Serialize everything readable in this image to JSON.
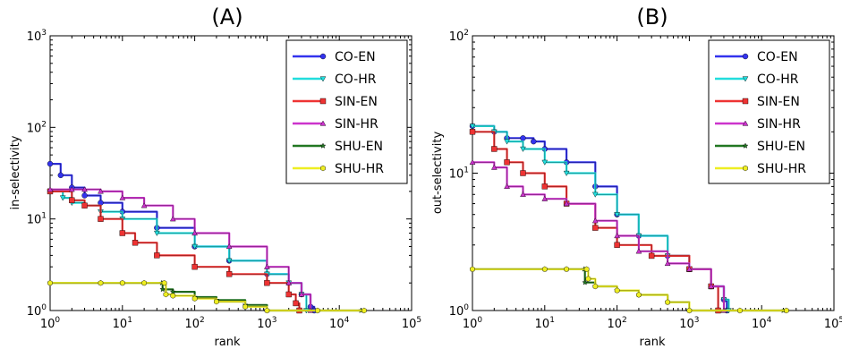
{
  "chart_data": [
    {
      "type": "line",
      "title": "(A)",
      "xlabel": "rank",
      "ylabel": "in-selectivity",
      "xscale": "log",
      "yscale": "log",
      "xlim": [
        1,
        100000
      ],
      "ylim": [
        1,
        1000
      ],
      "xticks": [
        "10^0",
        "10^1",
        "10^2",
        "10^3",
        "10^4",
        "10^5"
      ],
      "yticks": [
        "10^0",
        "10^1",
        "10^2",
        "10^3"
      ],
      "grid": false,
      "legend_position": "top-right",
      "series": [
        {
          "name": "CO-EN",
          "color": "#3333ee",
          "marker": "circle",
          "x": [
            1,
            1.4,
            2,
            3,
            5,
            10,
            30,
            100,
            300,
            1000,
            2000,
            3000,
            4000,
            4500
          ],
          "y": [
            40,
            30,
            22,
            18,
            15,
            12,
            8,
            5,
            3.5,
            2.5,
            2,
            1.5,
            1.1,
            1
          ]
        },
        {
          "name": "CO-HR",
          "color": "#22dddd",
          "marker": "triangle-down",
          "x": [
            1,
            1.5,
            2,
            3,
            5,
            10,
            30,
            100,
            300,
            1000,
            2000,
            3000,
            3500
          ],
          "y": [
            20,
            17,
            15,
            14,
            12,
            10,
            7,
            5,
            3.5,
            2.5,
            2,
            1.5,
            1
          ]
        },
        {
          "name": "SIN-EN",
          "color": "#ee3333",
          "marker": "square",
          "x": [
            1,
            2,
            3,
            5,
            10,
            15,
            30,
            100,
            300,
            1000,
            2000,
            2500,
            2800
          ],
          "y": [
            20,
            16,
            14,
            10,
            7,
            5.5,
            4,
            3,
            2.5,
            2,
            1.5,
            1.2,
            1
          ]
        },
        {
          "name": "SIN-HR",
          "color": "#cc33cc",
          "marker": "triangle-up",
          "x": [
            1,
            2,
            3,
            5,
            10,
            20,
            50,
            100,
            300,
            1000,
            2000,
            3000,
            4000
          ],
          "y": [
            21,
            21,
            21,
            20,
            17,
            14,
            10,
            7,
            5,
            3,
            2,
            1.5,
            1
          ]
        },
        {
          "name": "SHU-EN",
          "color": "#227722",
          "marker": "star",
          "x": [
            1,
            5,
            10,
            20,
            35,
            36,
            50,
            100,
            200,
            500,
            1000,
            5000,
            20000
          ],
          "y": [
            2,
            2,
            2,
            2,
            2,
            1.7,
            1.6,
            1.4,
            1.3,
            1.15,
            1,
            1,
            1
          ]
        },
        {
          "name": "SHU-HR",
          "color": "#eeee22",
          "marker": "hexagon",
          "x": [
            1,
            5,
            10,
            20,
            38,
            40,
            50,
            100,
            200,
            500,
            1000,
            5000,
            22000
          ],
          "y": [
            2,
            2,
            2,
            2,
            2,
            1.5,
            1.45,
            1.35,
            1.25,
            1.1,
            1,
            1,
            1
          ]
        }
      ]
    },
    {
      "type": "line",
      "title": "(B)",
      "xlabel": "rank",
      "ylabel": "out-selectivity",
      "xscale": "log",
      "yscale": "log",
      "xlim": [
        1,
        100000
      ],
      "ylim": [
        1,
        100
      ],
      "xticks": [
        "10^0",
        "10^1",
        "10^2",
        "10^3",
        "10^4",
        "10^5"
      ],
      "yticks": [
        "10^0",
        "10^1",
        "10^2"
      ],
      "grid": false,
      "legend_position": "top-right",
      "series": [
        {
          "name": "CO-EN",
          "color": "#3333ee",
          "marker": "circle",
          "x": [
            1,
            2,
            3,
            5,
            7,
            10,
            20,
            50,
            100,
            200,
            500,
            1000,
            2000,
            3000,
            3300
          ],
          "y": [
            22,
            20,
            18,
            18,
            17,
            15,
            12,
            8,
            5,
            3.5,
            2.5,
            2,
            1.5,
            1.2,
            1
          ]
        },
        {
          "name": "CO-HR",
          "color": "#22dddd",
          "marker": "triangle-down",
          "x": [
            1,
            2,
            3,
            5,
            10,
            20,
            50,
            100,
            200,
            500,
            1000,
            2000,
            3000,
            3500
          ],
          "y": [
            22,
            20,
            17,
            15,
            12,
            10,
            7,
            5,
            3.5,
            2.5,
            2,
            1.5,
            1.2,
            1
          ]
        },
        {
          "name": "SIN-EN",
          "color": "#ee3333",
          "marker": "square",
          "x": [
            1,
            2,
            3,
            5,
            10,
            20,
            50,
            100,
            300,
            1000,
            2000,
            2500
          ],
          "y": [
            20,
            15,
            12,
            10,
            8,
            6,
            4,
            3,
            2.5,
            2,
            1.5,
            1
          ]
        },
        {
          "name": "SIN-HR",
          "color": "#cc33cc",
          "marker": "triangle-up",
          "x": [
            1,
            2,
            3,
            5,
            10,
            20,
            50,
            100,
            200,
            500,
            1000,
            2000,
            3000
          ],
          "y": [
            12,
            11,
            8,
            7,
            6.5,
            6,
            4.5,
            3.5,
            2.7,
            2.2,
            2,
            1.5,
            1
          ]
        },
        {
          "name": "SHU-EN",
          "color": "#227722",
          "marker": "star",
          "x": [
            1,
            10,
            20,
            35,
            36,
            50,
            100,
            200,
            500,
            1000,
            5000,
            20000
          ],
          "y": [
            2,
            2,
            2,
            2,
            1.6,
            1.5,
            1.4,
            1.3,
            1.15,
            1,
            1,
            1
          ]
        },
        {
          "name": "SHU-HR",
          "color": "#eeee22",
          "marker": "hexagon",
          "x": [
            1,
            10,
            20,
            38,
            40,
            50,
            100,
            200,
            500,
            1000,
            5000,
            22000
          ],
          "y": [
            2,
            2,
            2,
            2,
            1.7,
            1.5,
            1.4,
            1.3,
            1.15,
            1,
            1,
            1
          ]
        }
      ]
    }
  ]
}
